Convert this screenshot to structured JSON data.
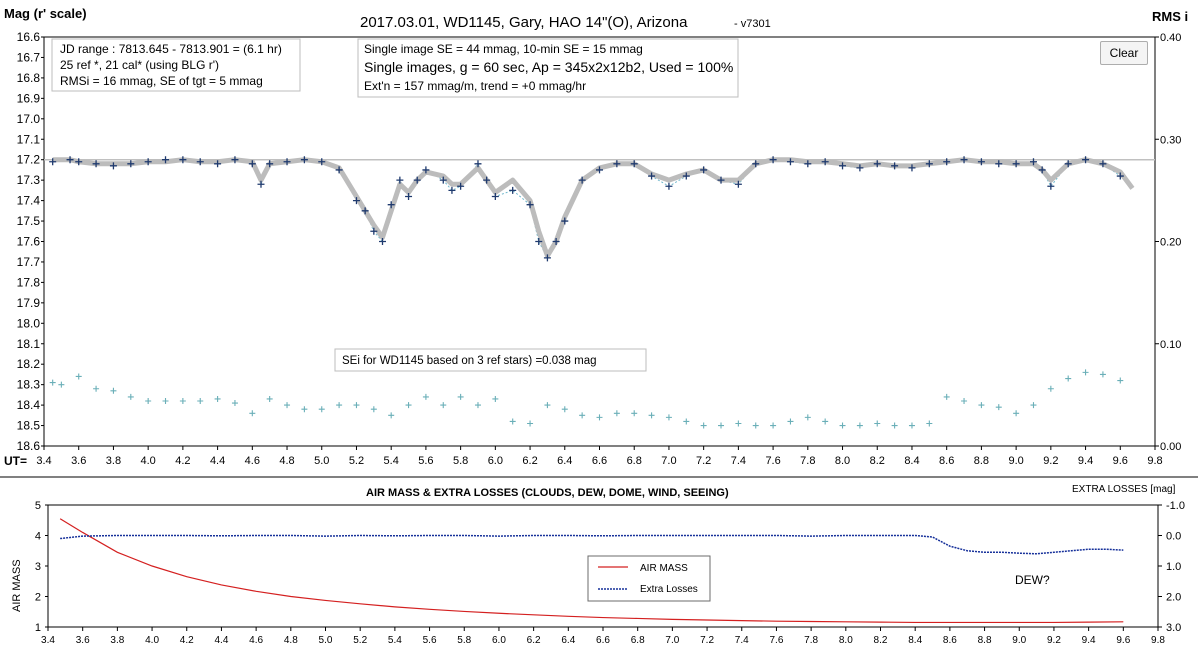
{
  "title": "2017.03.01,  WD1145, Gary, HAO  14\"(O), Arizona",
  "version": "- v7301",
  "clear_button": "Clear",
  "info_box_1": [
    "JD range  : 7813.645  - 7813.901  = (6.1 hr)",
    "25 ref *, 21 cal* (using BLG r')",
    "RMSi = 16 mmag, SE of tgt = 5 mmag"
  ],
  "info_box_2": [
    "Single image SE = 44 mmag, 10-min SE = 15 mmag",
    "Single images, g = 60 sec, Ap = 345x2x12b2,  Used = 100%",
    "Ext'n = 157  mmag/m, trend = +0 mmag/hr"
  ],
  "sei_label": "SEi for WD1145 based on 3 ref stars) =0.038 mag",
  "colors": {
    "mag_points": "#1f3a6e",
    "mag_line": "#6fb7cc",
    "fit": "#bcbcbc",
    "rms": "#6aafb8",
    "airmass": "#d42020",
    "extra": "#16309a",
    "ref_line": "#c0c0c0"
  },
  "chart_data": [
    {
      "type": "scatter",
      "ylabel": "Mag (r' scale)",
      "y2label": "RMS i",
      "xlabel": "UT=",
      "xlim": [
        3.4,
        9.8
      ],
      "ylim": [
        16.6,
        18.6
      ],
      "y2lim": [
        0.0,
        0.4
      ],
      "y_inverted": true,
      "xticks": [
        "3.4",
        "3.6",
        "3.8",
        "4.0",
        "4.2",
        "4.4",
        "4.6",
        "4.8",
        "5.0",
        "5.2",
        "5.4",
        "5.6",
        "5.8",
        "6.0",
        "6.2",
        "6.4",
        "6.6",
        "6.8",
        "7.0",
        "7.2",
        "7.4",
        "7.6",
        "7.8",
        "8.0",
        "8.2",
        "8.4",
        "8.6",
        "8.8",
        "9.0",
        "9.2",
        "9.4",
        "9.6",
        "9.8"
      ],
      "yticks": [
        "16.6",
        "16.7",
        "16.8",
        "16.9",
        "17.0",
        "17.1",
        "17.2",
        "17.3",
        "17.4",
        "17.5",
        "17.6",
        "17.7",
        "17.8",
        "17.9",
        "18.0",
        "18.1",
        "18.2",
        "18.3",
        "18.4",
        "18.5",
        "18.6"
      ],
      "y2ticks": [
        "0.00",
        "0.10",
        "0.20",
        "0.30",
        "0.40"
      ],
      "reference_mag": 17.2,
      "grid": false,
      "series": [
        {
          "x": [
            3.45,
            3.55,
            3.6,
            3.7,
            3.8,
            3.9,
            4.0,
            4.1,
            4.2,
            4.3,
            4.4,
            4.5,
            4.6,
            4.65,
            4.7,
            4.8,
            4.9,
            5.0,
            5.1,
            5.2,
            5.25,
            5.3,
            5.35,
            5.4,
            5.45,
            5.5,
            5.55,
            5.6,
            5.7,
            5.75,
            5.8,
            5.9,
            5.95,
            6.0,
            6.1,
            6.2,
            6.25,
            6.3,
            6.35,
            6.4,
            6.5,
            6.6,
            6.7,
            6.8,
            6.9,
            7.0,
            7.1,
            7.2,
            7.3,
            7.4,
            7.5,
            7.6,
            7.7,
            7.8,
            7.9,
            8.0,
            8.1,
            8.2,
            8.3,
            8.4,
            8.5,
            8.6,
            8.7,
            8.8,
            8.9,
            9.0,
            9.1,
            9.15,
            9.2,
            9.3,
            9.4,
            9.5,
            9.6
          ],
          "y": [
            17.21,
            17.2,
            17.21,
            17.22,
            17.23,
            17.22,
            17.21,
            17.2,
            17.2,
            17.21,
            17.22,
            17.2,
            17.22,
            17.32,
            17.22,
            17.21,
            17.2,
            17.21,
            17.25,
            17.4,
            17.45,
            17.55,
            17.6,
            17.42,
            17.3,
            17.38,
            17.3,
            17.25,
            17.3,
            17.35,
            17.33,
            17.22,
            17.3,
            17.38,
            17.35,
            17.42,
            17.6,
            17.68,
            17.6,
            17.5,
            17.3,
            17.25,
            17.22,
            17.22,
            17.28,
            17.33,
            17.28,
            17.25,
            17.3,
            17.32,
            17.22,
            17.2,
            17.21,
            17.22,
            17.21,
            17.23,
            17.24,
            17.22,
            17.23,
            17.24,
            17.22,
            17.21,
            17.2,
            17.21,
            17.22,
            17.22,
            17.21,
            17.25,
            17.33,
            17.22,
            17.2,
            17.22,
            17.28
          ]
        },
        {
          "x": [
            3.45,
            3.55,
            3.6,
            3.7,
            3.8,
            3.9,
            4.0,
            4.1,
            4.2,
            4.3,
            4.4,
            4.5,
            4.6,
            4.65,
            4.7,
            4.8,
            4.9,
            5.0,
            5.1,
            5.2,
            5.25,
            5.3,
            5.35,
            5.4,
            5.45,
            5.5,
            5.55,
            5.6,
            5.7,
            5.75,
            5.8,
            5.9,
            5.95,
            6.0,
            6.1,
            6.2,
            6.25,
            6.3,
            6.35,
            6.4,
            6.5,
            6.6,
            6.7,
            6.8,
            6.9,
            7.0,
            7.1,
            7.2,
            7.3,
            7.4,
            7.5,
            7.6,
            7.7,
            7.8,
            7.9,
            8.0,
            8.1,
            8.2,
            8.3,
            8.4,
            8.5,
            8.6,
            8.7,
            8.8,
            8.9,
            9.0,
            9.1,
            9.15,
            9.2,
            9.3,
            9.4,
            9.5,
            9.6,
            9.67
          ],
          "y": [
            17.2,
            17.2,
            17.21,
            17.22,
            17.22,
            17.22,
            17.21,
            17.21,
            17.2,
            17.21,
            17.21,
            17.2,
            17.21,
            17.3,
            17.22,
            17.21,
            17.2,
            17.21,
            17.24,
            17.38,
            17.45,
            17.52,
            17.58,
            17.45,
            17.32,
            17.36,
            17.3,
            17.26,
            17.28,
            17.32,
            17.32,
            17.24,
            17.3,
            17.36,
            17.3,
            17.4,
            17.55,
            17.67,
            17.6,
            17.48,
            17.3,
            17.24,
            17.22,
            17.22,
            17.27,
            17.3,
            17.27,
            17.25,
            17.3,
            17.3,
            17.22,
            17.2,
            17.2,
            17.21,
            17.21,
            17.22,
            17.23,
            17.22,
            17.23,
            17.23,
            17.22,
            17.21,
            17.2,
            17.21,
            17.21,
            17.22,
            17.22,
            17.25,
            17.3,
            17.22,
            17.2,
            17.22,
            17.26,
            17.34
          ]
        },
        {
          "x": [
            3.45,
            3.5,
            3.6,
            3.7,
            3.8,
            3.9,
            4.0,
            4.1,
            4.2,
            4.3,
            4.4,
            4.5,
            4.6,
            4.7,
            4.8,
            4.9,
            5.0,
            5.1,
            5.2,
            5.3,
            5.4,
            5.5,
            5.6,
            5.7,
            5.8,
            5.9,
            6.0,
            6.1,
            6.2,
            6.3,
            6.4,
            6.5,
            6.6,
            6.7,
            6.8,
            6.9,
            7.0,
            7.1,
            7.2,
            7.3,
            7.4,
            7.5,
            7.6,
            7.7,
            7.8,
            7.9,
            8.0,
            8.1,
            8.2,
            8.3,
            8.4,
            8.5,
            8.6,
            8.7,
            8.8,
            8.9,
            9.0,
            9.1,
            9.2,
            9.3,
            9.4,
            9.5,
            9.6
          ],
          "y": [
            0.062,
            0.06,
            0.068,
            0.056,
            0.054,
            0.048,
            0.044,
            0.044,
            0.044,
            0.044,
            0.046,
            0.042,
            0.032,
            0.046,
            0.04,
            0.036,
            0.036,
            0.04,
            0.04,
            0.036,
            0.03,
            0.04,
            0.048,
            0.04,
            0.048,
            0.04,
            0.046,
            0.024,
            0.022,
            0.04,
            0.036,
            0.03,
            0.028,
            0.032,
            0.032,
            0.03,
            0.028,
            0.024,
            0.02,
            0.02,
            0.022,
            0.02,
            0.02,
            0.024,
            0.028,
            0.024,
            0.02,
            0.02,
            0.022,
            0.02,
            0.02,
            0.022,
            0.048,
            0.044,
            0.04,
            0.038,
            0.032,
            0.04,
            0.056,
            0.066,
            0.072,
            0.07,
            0.064
          ]
        }
      ]
    },
    {
      "type": "line",
      "title": "AIR MASS & EXTRA LOSSES (CLOUDS, DEW, DOME, WIND, SEEING)",
      "ylabel": "AIR MASS",
      "y2label": "EXTRA LOSSES [mag]",
      "xlim": [
        3.4,
        9.8
      ],
      "ylim": [
        1,
        5
      ],
      "y2lim": [
        -1.0,
        3.0
      ],
      "y2_inverted": true,
      "xticks": [
        "3.4",
        "3.6",
        "3.8",
        "4.0",
        "4.2",
        "4.4",
        "4.6",
        "4.8",
        "5.0",
        "5.2",
        "5.4",
        "5.6",
        "5.8",
        "6.0",
        "6.2",
        "6.4",
        "6.6",
        "6.8",
        "7.0",
        "7.2",
        "7.4",
        "7.6",
        "7.8",
        "8.0",
        "8.2",
        "8.4",
        "8.6",
        "8.8",
        "9.0",
        "9.2",
        "9.4",
        "9.6",
        "9.8"
      ],
      "yticks": [
        "1",
        "2",
        "3",
        "4",
        "5"
      ],
      "y2ticks": [
        "-1.0",
        "0.0",
        "1.0",
        "2.0",
        "3.0"
      ],
      "legend": [
        "AIR MASS",
        "Extra Losses"
      ],
      "legend_position": "center-right",
      "annotation": "DEW?",
      "series": [
        {
          "name": "AIR MASS",
          "x": [
            3.47,
            3.6,
            3.8,
            4.0,
            4.2,
            4.4,
            4.6,
            4.8,
            5.0,
            5.2,
            5.4,
            5.6,
            5.8,
            6.0,
            6.2,
            6.4,
            6.6,
            6.8,
            7.0,
            7.2,
            7.4,
            7.6,
            7.8,
            8.0,
            8.2,
            8.4,
            8.6,
            8.8,
            9.0,
            9.2,
            9.4,
            9.6
          ],
          "y": [
            4.55,
            4.1,
            3.45,
            3.0,
            2.65,
            2.38,
            2.17,
            2.0,
            1.87,
            1.76,
            1.66,
            1.58,
            1.51,
            1.45,
            1.4,
            1.35,
            1.31,
            1.28,
            1.25,
            1.23,
            1.21,
            1.19,
            1.18,
            1.17,
            1.16,
            1.15,
            1.15,
            1.15,
            1.15,
            1.15,
            1.16,
            1.17
          ]
        },
        {
          "name": "Extra Losses",
          "x": [
            3.47,
            3.6,
            3.8,
            4.0,
            4.2,
            4.4,
            4.6,
            4.8,
            5.0,
            5.2,
            5.4,
            5.6,
            5.8,
            6.0,
            6.2,
            6.4,
            6.6,
            6.8,
            7.0,
            7.2,
            7.4,
            7.6,
            7.8,
            8.0,
            8.2,
            8.4,
            8.5,
            8.6,
            8.7,
            8.8,
            8.9,
            9.0,
            9.1,
            9.2,
            9.3,
            9.4,
            9.5,
            9.6
          ],
          "y": [
            0.1,
            0.02,
            0.0,
            0.0,
            0.0,
            0.01,
            0.0,
            0.0,
            0.02,
            0.0,
            0.01,
            0.0,
            0.0,
            0.02,
            0.0,
            0.0,
            0.01,
            0.0,
            0.0,
            0.0,
            0.0,
            0.0,
            0.02,
            0.0,
            0.0,
            0.0,
            0.05,
            0.35,
            0.5,
            0.55,
            0.55,
            0.58,
            0.6,
            0.55,
            0.5,
            0.45,
            0.45,
            0.48
          ]
        }
      ]
    }
  ]
}
